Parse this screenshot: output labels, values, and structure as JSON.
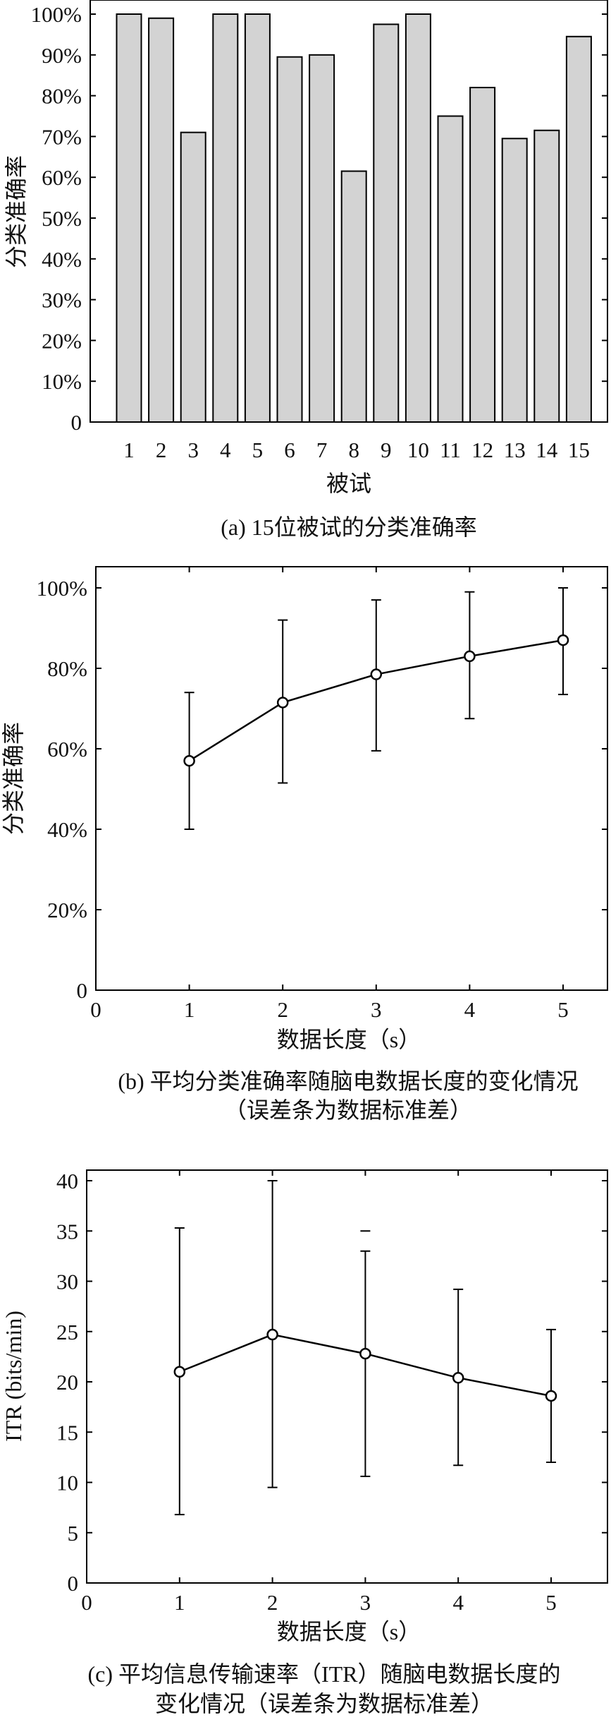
{
  "chart_data": [
    {
      "type": "bar",
      "categories": [
        "1",
        "2",
        "3",
        "4",
        "5",
        "6",
        "7",
        "8",
        "9",
        "10",
        "11",
        "12",
        "13",
        "14",
        "15"
      ],
      "values": [
        100,
        99,
        71,
        100,
        100,
        89.5,
        90,
        61.5,
        97.5,
        100,
        75,
        82,
        69.5,
        71.5,
        94.5
      ],
      "ylim": [
        0,
        100
      ],
      "yticks": [
        "0",
        "10%",
        "20%",
        "30%",
        "40%",
        "50%",
        "60%",
        "70%",
        "80%",
        "90%",
        "100%"
      ],
      "xlabel": "被试",
      "ylabel": "分类准确率",
      "caption": "(a) 15位被试的分类准确率",
      "bar_color": "#d3d3d3",
      "grid": false
    },
    {
      "type": "line",
      "x": [
        1,
        2,
        3,
        4,
        5
      ],
      "y": [
        57,
        71.5,
        78.5,
        83,
        87
      ],
      "err_low": [
        40,
        51.5,
        59.5,
        67.5,
        73.5
      ],
      "err_high": [
        74,
        92,
        97,
        99,
        100
      ],
      "xlim": [
        0,
        5.5
      ],
      "ylim": [
        0,
        100
      ],
      "xticks": [
        "0",
        "1",
        "2",
        "3",
        "4",
        "5"
      ],
      "yticks": [
        "0",
        "20%",
        "40%",
        "60%",
        "80%",
        "100%"
      ],
      "xlabel": "数据长度（s）",
      "ylabel": "分类准确率",
      "caption_line1": "(b) 平均分类准确率随脑电数据长度的变化情况",
      "caption_line2": "（误差条为数据标准差）",
      "grid": false
    },
    {
      "type": "line",
      "x": [
        1,
        2,
        3,
        4,
        5
      ],
      "y": [
        21,
        24.7,
        22.8,
        20.4,
        18.6
      ],
      "err_low": [
        6.8,
        9.5,
        10.6,
        11.7,
        12
      ],
      "err_high": [
        35.3,
        40,
        33,
        29.2,
        25.2
      ],
      "extra_cap": {
        "x": 3,
        "y": 35
      },
      "xlim": [
        0,
        5.5
      ],
      "ylim": [
        0,
        42
      ],
      "xticks": [
        "0",
        "1",
        "2",
        "3",
        "4",
        "5"
      ],
      "yticks": [
        "0",
        "5",
        "10",
        "15",
        "20",
        "25",
        "30",
        "35",
        "40"
      ],
      "xlabel": "数据长度（s）",
      "ylabel": "ITR (bits/min)",
      "caption_line1": "(c) 平均信息传输速率（ITR）随脑电数据长度的",
      "caption_line2": "变化情况（误差条为数据标准差）",
      "grid": false
    }
  ]
}
